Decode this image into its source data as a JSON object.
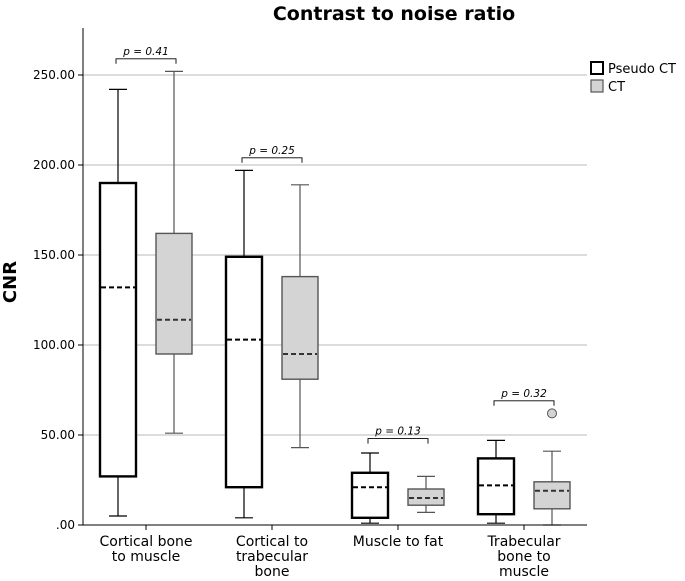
{
  "chart_data": {
    "type": "box",
    "title": "Contrast to noise ratio",
    "ylabel": "CNR",
    "xlabel": "",
    "ylim": [
      0,
      250
    ],
    "yticks": [
      {
        "value": 0,
        "label": ".00"
      },
      {
        "value": 50,
        "label": "50.00"
      },
      {
        "value": 100,
        "label": "100.00"
      },
      {
        "value": 150,
        "label": "150.00"
      },
      {
        "value": 200,
        "label": "200.00"
      },
      {
        "value": 250,
        "label": "250.00"
      }
    ],
    "grid": true,
    "legend_position": "top-right",
    "categories": [
      [
        "Cortical bone",
        "to muscle"
      ],
      [
        "Cortical to",
        "trabecular",
        "bone"
      ],
      [
        "Muscle to fat"
      ],
      [
        "Trabecular",
        "bone to",
        "muscle"
      ]
    ],
    "series": [
      {
        "name": "Pseudo CT",
        "fill": "#ffffff",
        "stroke": "#000000",
        "boxes": [
          {
            "min": 5,
            "q1": 27,
            "median": 132,
            "q3": 190,
            "max": 242,
            "outliers": []
          },
          {
            "min": 4,
            "q1": 21,
            "median": 103,
            "q3": 149,
            "max": 197,
            "outliers": []
          },
          {
            "min": 1,
            "q1": 4,
            "median": 21,
            "q3": 29,
            "max": 40,
            "outliers": []
          },
          {
            "min": 1,
            "q1": 6,
            "median": 22,
            "q3": 37,
            "max": 47,
            "outliers": []
          }
        ]
      },
      {
        "name": "CT",
        "fill": "#d4d4d4",
        "stroke": "#555555",
        "boxes": [
          {
            "min": 51,
            "q1": 95,
            "median": 114,
            "q3": 162,
            "max": 252,
            "outliers": []
          },
          {
            "min": 43,
            "q1": 81,
            "median": 95,
            "q3": 138,
            "max": 189,
            "outliers": []
          },
          {
            "min": 7,
            "q1": 11,
            "median": 15,
            "q3": 20,
            "max": 27,
            "outliers": []
          },
          {
            "min": 0,
            "q1": 9,
            "median": 19,
            "q3": 24,
            "max": 41,
            "outliers": [
              62
            ]
          }
        ]
      }
    ],
    "annotations": [
      {
        "category": 0,
        "text": "p = 0.41",
        "y": 259
      },
      {
        "category": 1,
        "text": "p = 0.25",
        "y": 204
      },
      {
        "category": 2,
        "text": "p = 0.13",
        "y": 48
      },
      {
        "category": 3,
        "text": "p = 0.32",
        "y": 69
      }
    ]
  }
}
